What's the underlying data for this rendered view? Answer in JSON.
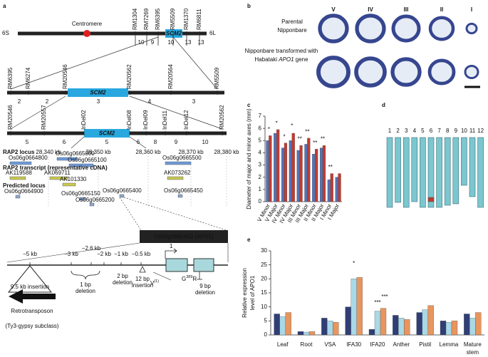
{
  "panel_a": {
    "label": "a",
    "gene": "SCM2",
    "left_end": "6S",
    "right_end": "6L",
    "centromere": "Centromere",
    "maps": [
      {
        "markers": [
          "RM1304",
          "RM7269",
          "RM6395",
          "RM5509",
          "RM1370",
          "RM6811"
        ],
        "recombinants": [
          10,
          9,
          10,
          13,
          13
        ]
      },
      {
        "markers": [
          "RM6395",
          "RM6274",
          "RM20546",
          "RM20562",
          "RM20564",
          "RM5509"
        ],
        "recombinants": [
          2,
          2,
          3,
          4,
          3
        ]
      },
      {
        "markers": [
          "RM20546",
          "RM20557",
          "InDel02",
          "InDel08",
          "InDel09",
          "InDel11",
          "InDel12",
          "RM20562"
        ],
        "recombinants": [
          5,
          6,
          5,
          6,
          8,
          9,
          10
        ]
      }
    ],
    "genomic_positions": [
      "28,340 kb",
      "28,350 kb",
      "28,360 kb",
      "28,370 kb",
      "28,380 kb"
    ],
    "rap2_locus": {
      "heading": "RAP2 locus",
      "ids": [
        "Os06g0664800",
        "Os06g0665000",
        "Os06g0665100",
        "Os06g0665500"
      ]
    },
    "rap2_transcript": {
      "heading": "RAP2 transcript (representative cDNA)",
      "ids": [
        "AK119588",
        "AK069711",
        "AK101330",
        "AK073262"
      ]
    },
    "predicted_locus": {
      "heading": "Predicted locus",
      "ids": [
        "Os06g0664900",
        "Os06g0665150",
        "Os06g0665200",
        "Os06g0665400",
        "Os06g0665450"
      ]
    },
    "structure": {
      "gene_label": "Os06g0665400 (APO1)",
      "positions": [
        "−5 kb",
        "−3 kb",
        "−2.6 kb",
        "−2 kb",
        "−1 kb",
        "−0.5 kb"
      ],
      "start": "1",
      "insertion": "9.5 kb insertion",
      "retrotransposon": "Retrotransposon",
      "subclass": "(Ty3-gypsy subclass)",
      "variants": [
        [
          "1 bp",
          "deletion"
        ],
        [
          "2 bp",
          "deletion"
        ],
        [
          "12 bp",
          "insertion"
        ],
        [
          "9 bp",
          "deletion"
        ]
      ],
      "mutations": [
        {
          "base": "V",
          "sup": "(1)"
        },
        {
          "base": "G",
          "sup": "389",
          "rest": "R"
        }
      ]
    }
  },
  "panel_b": {
    "label": "b",
    "columns": [
      "V",
      "IV",
      "III",
      "II",
      "I"
    ],
    "row1": [
      "Parental",
      "Nipponbare"
    ],
    "row2": {
      "line1": "Nipponbare transformed with",
      "pre": "Habataki ",
      "gene": "APO1",
      "post": " gene"
    }
  },
  "panel_d": {
    "label": "d",
    "chromosomes": [
      "1",
      "2",
      "3",
      "4",
      "5",
      "6",
      "7",
      "8",
      "9",
      "10",
      "11",
      "12"
    ],
    "lengths": [
      98,
      91,
      98,
      90,
      98,
      98,
      98,
      95,
      93,
      67,
      83,
      98
    ],
    "introgression": {
      "chromosome": "6",
      "start": 84,
      "end": 90,
      "color": "#c0392b"
    },
    "color": "#7cc6cf"
  },
  "chart_data": [
    {
      "type": "bar",
      "label": "c",
      "y_label": "Diameter of major and minor axes (mm)",
      "categories": [
        "V Minor",
        "V Major",
        "IV Minor",
        "IV Major",
        "III Minor",
        "III Major",
        "II Minor",
        "II Major",
        "I Minor",
        "I Major"
      ],
      "series": [
        {
          "color": "#4f74b8",
          "values": [
            5.0,
            5.6,
            4.4,
            5.0,
            4.2,
            4.7,
            3.9,
            4.4,
            1.8,
            2.0
          ]
        },
        {
          "color": "#c23b31",
          "values": [
            5.4,
            5.9,
            4.8,
            5.6,
            4.6,
            5.2,
            4.3,
            4.6,
            2.3,
            2.3
          ]
        }
      ],
      "annotations": [
        {
          "text": "*",
          "x": "V Minor",
          "y": 5.9
        },
        {
          "text": "*",
          "x": "V Major",
          "y": 6.4
        },
        {
          "text": "*",
          "x": "IV Minor",
          "y": 5.3
        },
        {
          "text": "*",
          "x": "IV Major",
          "y": 6.2
        },
        {
          "text": "**",
          "x": "III Minor",
          "y": 5.1
        },
        {
          "text": "**",
          "x": "III Major",
          "y": 5.7
        },
        {
          "text": "**",
          "x": "II Minor",
          "y": 4.8
        },
        {
          "text": "**",
          "x": "II Major",
          "y": 5.1
        },
        {
          "text": "**",
          "x": "I Minor",
          "y": 2.8
        }
      ],
      "ylim": [
        0,
        7
      ],
      "yticks": [
        0,
        1,
        2,
        3,
        4,
        5,
        6,
        7
      ]
    },
    {
      "type": "bar",
      "label": "e",
      "y_label": [
        "Relative expression",
        "level of APO1"
      ],
      "categories": [
        "Leaf",
        "Root",
        "VSA",
        "IFA30",
        "IFA20",
        "Anther",
        "Pistil",
        "Lemma",
        "Mature stem"
      ],
      "series": [
        {
          "color": "#2f3e75",
          "values": [
            7.5,
            1.2,
            6.0,
            10.0,
            2.0,
            7.0,
            8.0,
            5.0,
            7.5
          ]
        },
        {
          "color": "#a9d8e6",
          "values": [
            6.5,
            1.0,
            5.0,
            20.0,
            8.5,
            6.0,
            9.0,
            4.5,
            6.0
          ]
        },
        {
          "color": "#e8955e",
          "values": [
            8.0,
            1.2,
            4.5,
            20.5,
            9.5,
            5.5,
            10.5,
            5.0,
            8.0
          ]
        }
      ],
      "annotations": [
        {
          "text": "*",
          "x": "IFA30",
          "y": 25.5
        },
        {
          "text": "***",
          "x": "IFA20",
          "y": 11.5
        },
        {
          "text": "***",
          "x": "IFA20",
          "y": 13.5
        }
      ],
      "ylim": [
        0,
        30
      ],
      "yticks": [
        0,
        5,
        10,
        15,
        20,
        25,
        30
      ]
    }
  ]
}
